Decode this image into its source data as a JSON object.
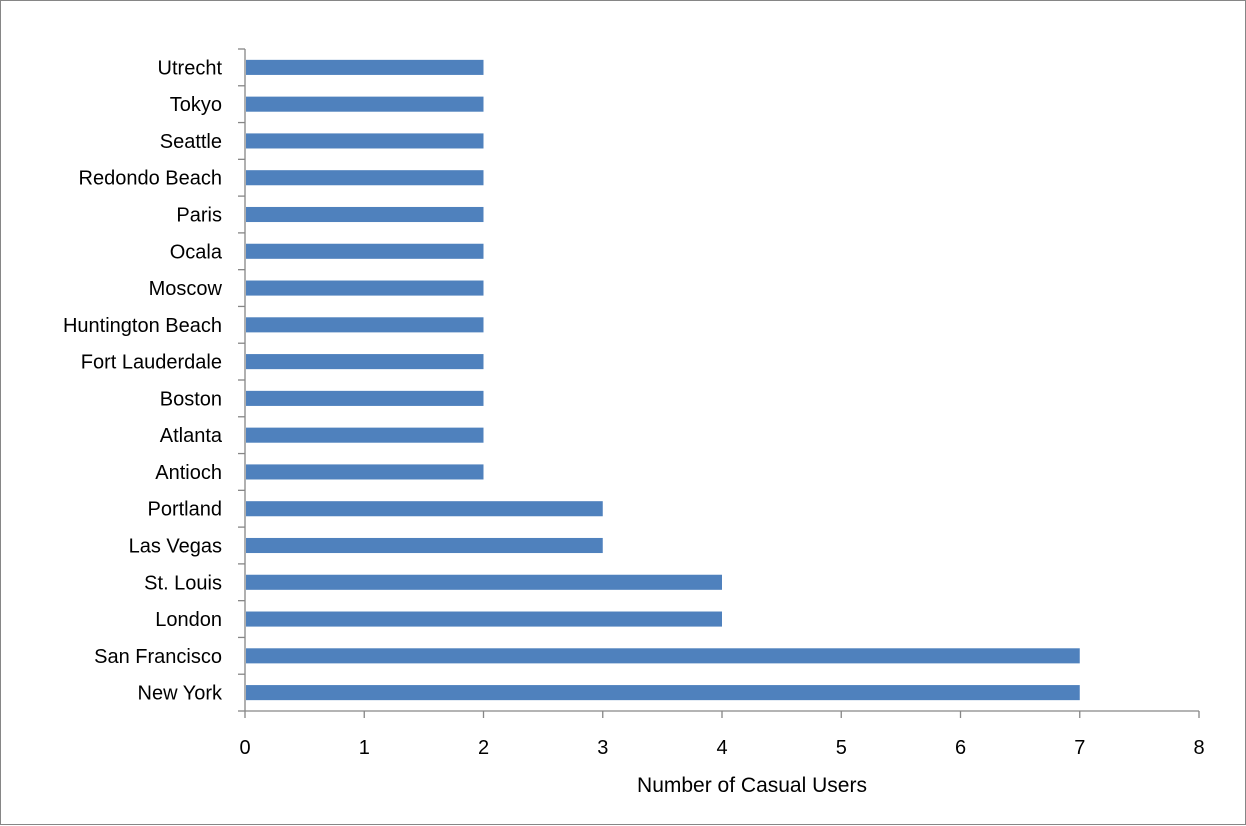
{
  "chart_data": {
    "type": "bar",
    "orientation": "horizontal",
    "categories": [
      "New York",
      "San Francisco",
      "London",
      "St. Louis",
      "Las Vegas",
      "Portland",
      "Antioch",
      "Atlanta",
      "Boston",
      "Fort Lauderdale",
      "Huntington Beach",
      "Moscow",
      "Ocala",
      "Paris",
      "Redondo Beach",
      "Seattle",
      "Tokyo",
      "Utrecht"
    ],
    "values": [
      7,
      7,
      4,
      4,
      3,
      3,
      2,
      2,
      2,
      2,
      2,
      2,
      2,
      2,
      2,
      2,
      2,
      2
    ],
    "title": "",
    "xlabel": "Number of Casual Users",
    "ylabel": "",
    "xlim": [
      0,
      8
    ],
    "xticks": [
      0,
      1,
      2,
      3,
      4,
      5,
      6,
      7,
      8
    ],
    "grid": false,
    "legend": "none",
    "bar_color": "#4f81bd",
    "axis_color": "#868686"
  }
}
